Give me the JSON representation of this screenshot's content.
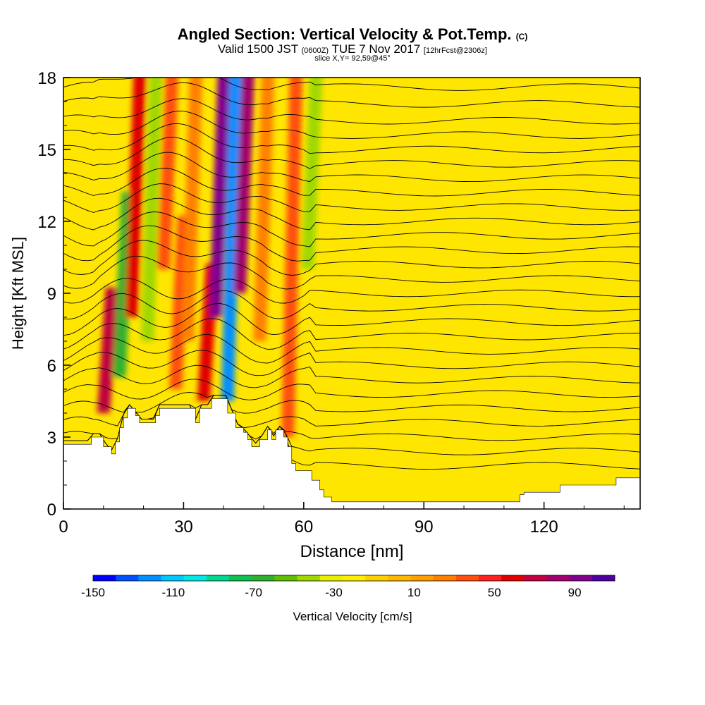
{
  "header": {
    "title": "Angled Section: Vertical Velocity & Pot.Temp.",
    "title_suffix": "(C)",
    "valid_prefix": "Valid 1500 JST",
    "valid_utc": "(0600Z)",
    "valid_date": "TUE 7 Nov 2017",
    "forecast": "[12hrFcst@2306z]",
    "slice": "slice X,Y= 92,59@45°"
  },
  "chart_data": {
    "type": "heatmap",
    "xlabel": "Distance [nm]",
    "ylabel": "Height [Kft MSL]",
    "xlim": [
      0,
      144
    ],
    "ylim": [
      0,
      18
    ],
    "xticks": [
      0,
      30,
      60,
      90,
      120
    ],
    "yticks": [
      0,
      3,
      6,
      9,
      12,
      15,
      18
    ],
    "colorbar": {
      "label": "Vertical Velocity [cm/s]",
      "range": [
        -150,
        110
      ],
      "tick_values": [
        -150,
        -110,
        -70,
        -30,
        10,
        50,
        90
      ],
      "tick_labels": [
        "-150",
        "-110",
        "-70",
        "-30",
        "10",
        "50",
        "90"
      ],
      "colors": [
        "#0000ff",
        "#0050ff",
        "#0090ff",
        "#00c8ff",
        "#00e8e8",
        "#00d890",
        "#10c050",
        "#30b030",
        "#60c000",
        "#a0d800",
        "#e8f000",
        "#ffee00",
        "#ffd000",
        "#ffb800",
        "#ffa000",
        "#ff8000",
        "#ff5010",
        "#ff2020",
        "#e00000",
        "#c00040",
        "#a00070",
        "#800090",
        "#5000a0"
      ]
    },
    "velocity_bands": [
      {
        "x": 10,
        "y": 4,
        "top": 9,
        "value": 70
      },
      {
        "x": 14,
        "y": 5.5,
        "top": 13,
        "value": -60
      },
      {
        "x": 17,
        "y": 8,
        "top": 18,
        "value": 60
      },
      {
        "x": 21,
        "y": 7,
        "top": 18,
        "value": -40
      },
      {
        "x": 25,
        "y": 10,
        "top": 18,
        "value": 40
      },
      {
        "x": 28,
        "y": 5,
        "top": 12,
        "value": 40
      },
      {
        "x": 31,
        "y": 7,
        "top": 18,
        "value": 30
      },
      {
        "x": 35,
        "y": 4.5,
        "top": 10,
        "value": 60
      },
      {
        "x": 38,
        "y": 8,
        "top": 18,
        "value": 90
      },
      {
        "x": 41,
        "y": 4.5,
        "top": 18,
        "value": -120
      },
      {
        "x": 44,
        "y": 9,
        "top": 18,
        "value": 80
      },
      {
        "x": 49,
        "y": 7,
        "top": 18,
        "value": 30
      },
      {
        "x": 56,
        "y": 3,
        "top": 18,
        "value": 40
      },
      {
        "x": 61,
        "y": 10,
        "top": 18,
        "value": -40
      }
    ],
    "terrain_profile": [
      [
        0,
        2.7
      ],
      [
        7,
        2.7
      ],
      [
        7,
        3.0
      ],
      [
        10,
        3.0
      ],
      [
        10,
        2.6
      ],
      [
        12,
        2.6
      ],
      [
        12,
        2.3
      ],
      [
        13,
        2.3
      ],
      [
        13,
        2.8
      ],
      [
        14,
        2.8
      ],
      [
        14,
        3.4
      ],
      [
        15,
        3.4
      ],
      [
        15,
        3.8
      ],
      [
        16,
        3.8
      ],
      [
        16,
        4.2
      ],
      [
        18,
        4.2
      ],
      [
        18,
        3.9
      ],
      [
        19,
        3.9
      ],
      [
        19,
        3.6
      ],
      [
        23,
        3.6
      ],
      [
        23,
        3.9
      ],
      [
        24,
        3.9
      ],
      [
        24,
        4.2
      ],
      [
        33,
        4.2
      ],
      [
        33,
        3.6
      ],
      [
        34,
        3.6
      ],
      [
        34,
        4.2
      ],
      [
        37,
        4.2
      ],
      [
        37,
        4.6
      ],
      [
        41,
        4.6
      ],
      [
        41,
        4.0
      ],
      [
        43,
        4.0
      ],
      [
        43,
        3.4
      ],
      [
        45,
        3.4
      ],
      [
        45,
        3.2
      ],
      [
        46,
        3.2
      ],
      [
        46,
        2.9
      ],
      [
        47,
        2.9
      ],
      [
        47,
        2.6
      ],
      [
        49,
        2.6
      ],
      [
        49,
        2.9
      ],
      [
        51,
        2.9
      ],
      [
        51,
        3.3
      ],
      [
        52,
        3.3
      ],
      [
        52,
        2.9
      ],
      [
        53,
        2.9
      ],
      [
        53,
        3.3
      ],
      [
        55,
        3.3
      ],
      [
        55,
        3.0
      ],
      [
        56,
        3.0
      ],
      [
        56,
        2.6
      ],
      [
        57,
        2.6
      ],
      [
        57,
        1.9
      ],
      [
        58,
        1.9
      ],
      [
        58,
        1.6
      ],
      [
        62,
        1.6
      ],
      [
        62,
        1.2
      ],
      [
        64,
        1.2
      ],
      [
        64,
        0.8
      ],
      [
        65,
        0.8
      ],
      [
        65,
        0.5
      ],
      [
        67,
        0.5
      ],
      [
        67,
        0.3
      ],
      [
        114,
        0.3
      ],
      [
        114,
        0.6
      ],
      [
        115,
        0.6
      ],
      [
        115,
        0.7
      ],
      [
        124,
        0.7
      ],
      [
        124,
        1.0
      ],
      [
        138,
        1.0
      ],
      [
        138,
        1.3
      ],
      [
        144,
        1.3
      ]
    ],
    "contour_levels": [
      17.6,
      16.9,
      16.2,
      15.6,
      15.0,
      14.4,
      13.8,
      13.2,
      12.6,
      12.0,
      11.4,
      10.8,
      10.2,
      9.6,
      9.0,
      8.4,
      7.8,
      7.2,
      6.6,
      6.0,
      5.4,
      4.8,
      4.2,
      3.6,
      3.0,
      2.4,
      1.8
    ]
  },
  "colors": {
    "terrain": "#ffffff",
    "contour": "#000000"
  }
}
